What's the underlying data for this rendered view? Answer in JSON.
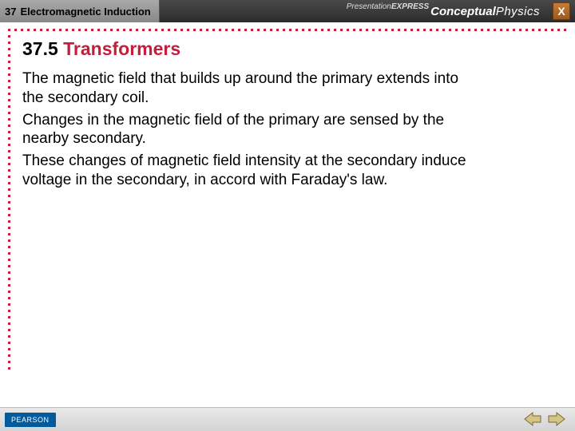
{
  "header": {
    "chapter_num": "37",
    "chapter_title": "Electromagnetic Induction",
    "brand_small": "Presentation",
    "brand_express": "EXPRESS",
    "brand_conceptual": "Conceptual",
    "brand_physics": "Physics",
    "close_label": "X"
  },
  "section": {
    "number": "37.5",
    "title": "Transformers"
  },
  "paragraphs": [
    "The magnetic field that builds up around the primary extends into the secondary coil.",
    "Changes in the magnetic field of the primary are sensed by the nearby secondary.",
    "These changes of magnetic field intensity at the secondary induce voltage in the secondary, in accord with Faraday's law."
  ],
  "footer": {
    "publisher": "PEARSON"
  },
  "colors": {
    "accent_red": "#c41e3a",
    "pearson_blue": "#005a9c"
  }
}
